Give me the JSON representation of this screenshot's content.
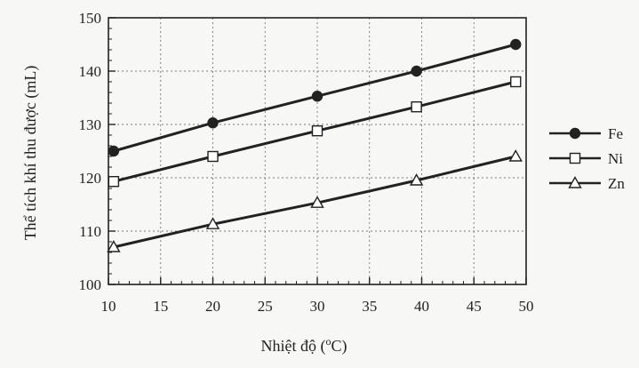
{
  "chart_data": {
    "type": "line",
    "title": "",
    "xlabel": "Nhiệt độ (",
    "xlabel_sup": "o",
    "xlabel_tail": "C)",
    "ylabel": "Thể tích khí thu được (mL)",
    "xlim": [
      10,
      50
    ],
    "ylim": [
      100,
      150
    ],
    "xticks": [
      "10",
      "15",
      "20",
      "25",
      "30",
      "35",
      "40",
      "45",
      "50"
    ],
    "yticks": [
      "100",
      "110",
      "120",
      "130",
      "140",
      "150"
    ],
    "grid": true,
    "legend_position": "right",
    "series": [
      {
        "name": "Fe",
        "marker": "circle",
        "x": [
          10.5,
          20,
          30,
          39.5,
          49
        ],
        "y": [
          125,
          130.3,
          135.3,
          140,
          145
        ]
      },
      {
        "name": "Ni",
        "marker": "square",
        "x": [
          10.5,
          20,
          30,
          39.5,
          49
        ],
        "y": [
          119.3,
          124,
          128.8,
          133.3,
          138
        ]
      },
      {
        "name": "Zn",
        "marker": "triangle",
        "x": [
          10.5,
          20,
          30,
          39.5,
          49
        ],
        "y": [
          107,
          111.3,
          115.3,
          119.5,
          124
        ]
      }
    ]
  }
}
